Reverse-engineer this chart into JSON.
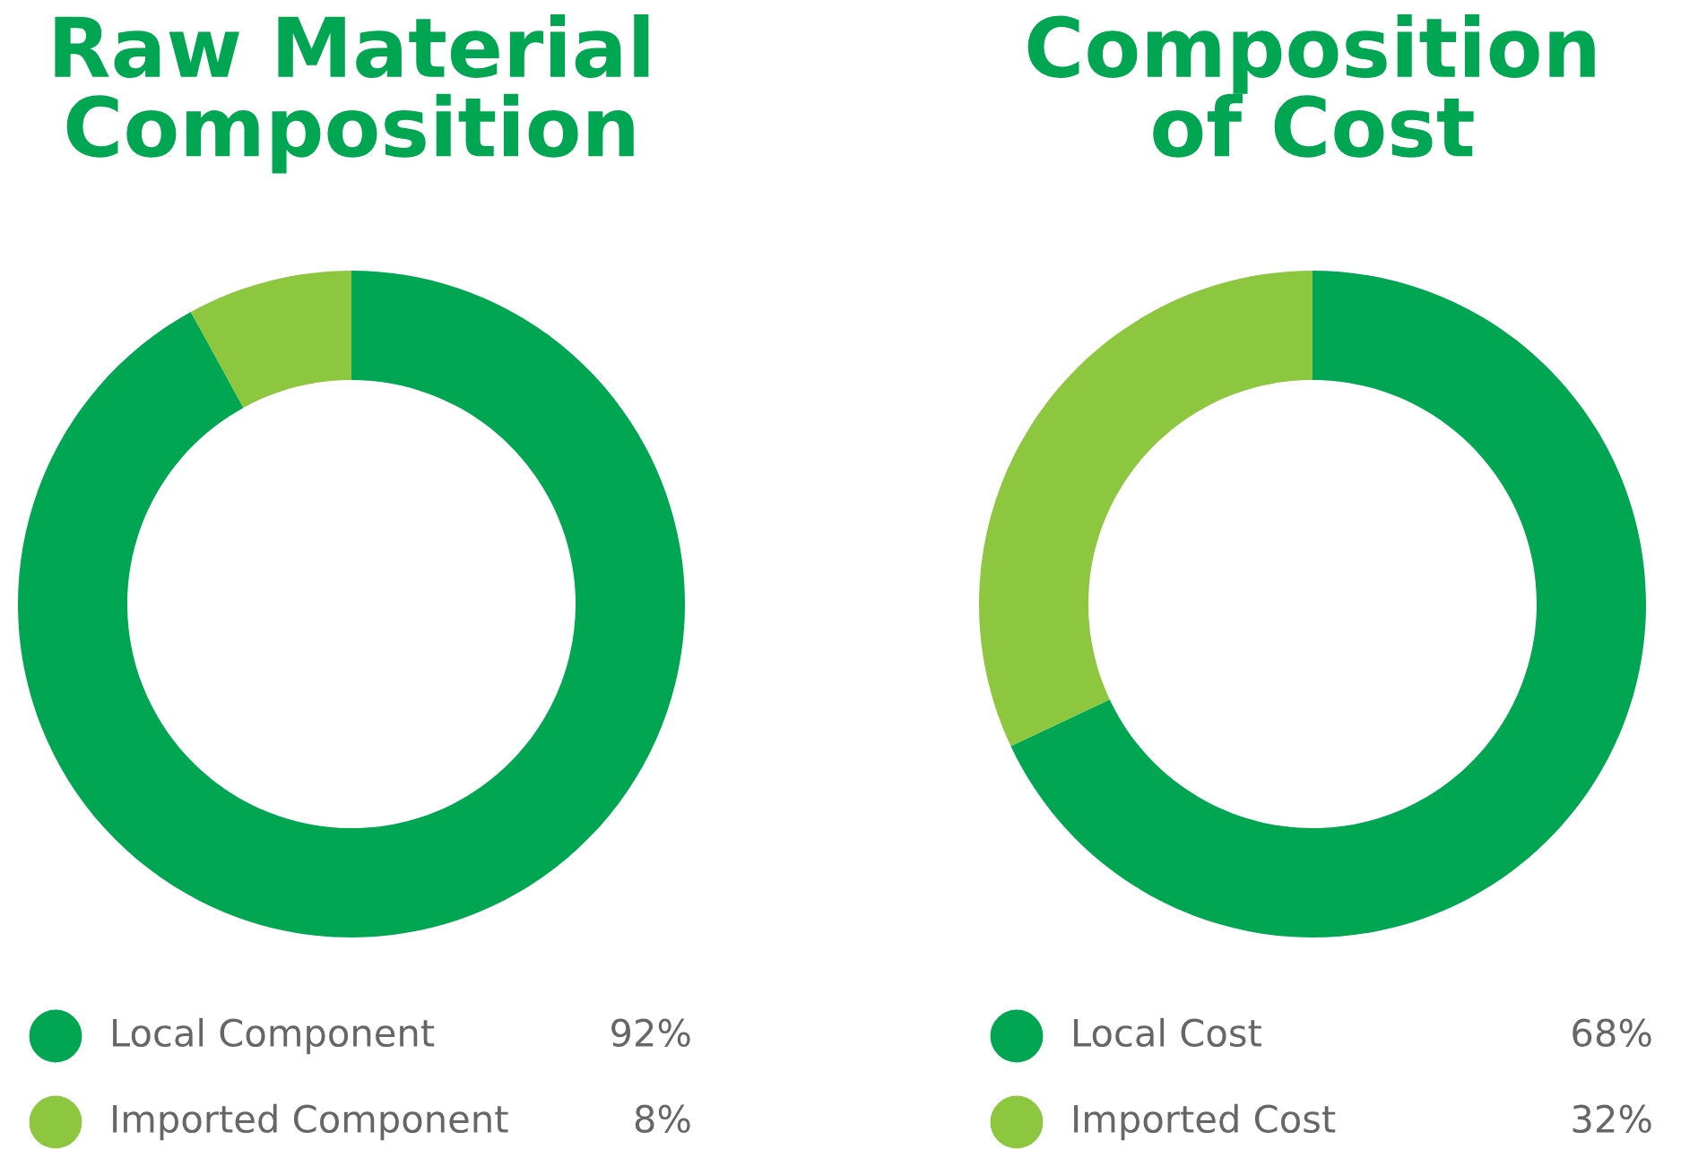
{
  "chart_data": [
    {
      "type": "donut",
      "title": "Raw Material\nComposition",
      "categories": [
        "Local Component",
        "Imported Component"
      ],
      "values": [
        92,
        8
      ],
      "colors": [
        "#00a651",
        "#8dc63f"
      ],
      "value_labels": [
        "92%",
        "8%"
      ],
      "legend": "bottom"
    },
    {
      "type": "donut",
      "title": "Composition\nof Cost",
      "categories": [
        "Local Cost",
        "Imported Cost"
      ],
      "values": [
        68,
        32
      ],
      "colors": [
        "#00a651",
        "#8dc63f"
      ],
      "value_labels": [
        "68%",
        "32%"
      ],
      "legend": "bottom"
    }
  ]
}
